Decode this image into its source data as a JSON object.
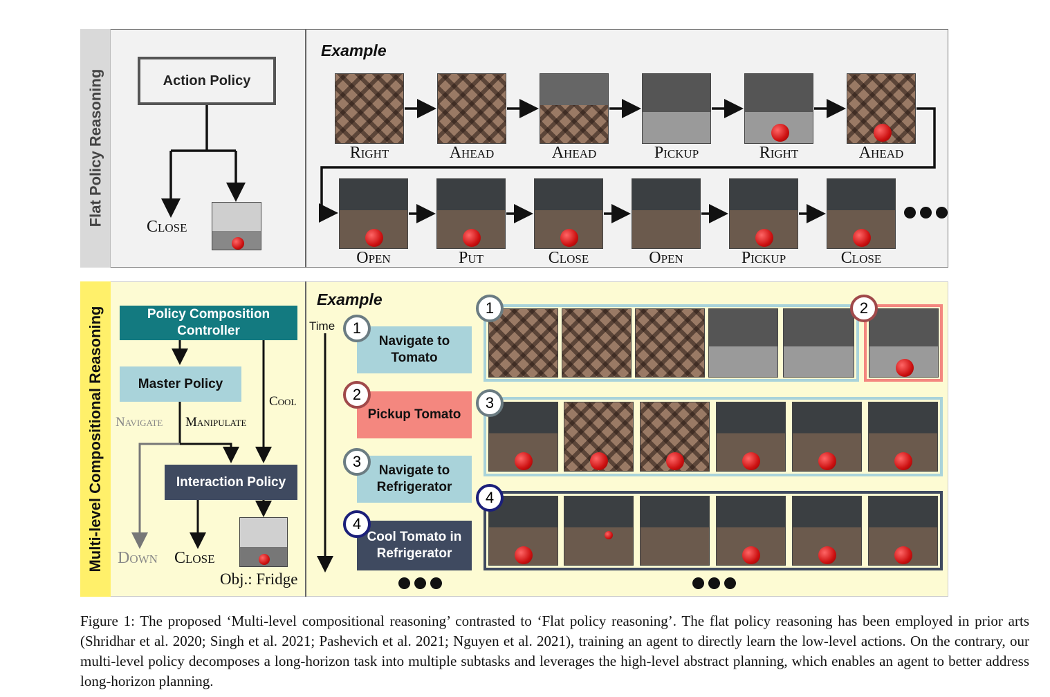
{
  "flat": {
    "side_label": "Flat Policy Reasoning",
    "example_label": "Example",
    "policy_box": "Action Policy",
    "output_action": "Close",
    "row1_actions": [
      "Right",
      "Ahead",
      "Ahead",
      "Pickup",
      "Right",
      "Ahead"
    ],
    "row2_actions": [
      "Open",
      "Put",
      "Close",
      "Open",
      "Pickup",
      "Close"
    ]
  },
  "multi": {
    "side_label": "Multi-level Compositional Reasoning",
    "example_label": "Example",
    "controller_box": "Policy Composition Controller",
    "master_box": "Master Policy",
    "interaction_box": "Interaction Policy",
    "edge_navigate": "Navigate",
    "edge_manipulate": "Manipulate",
    "edge_cool": "Cool",
    "out_down": "Down",
    "out_close": "Close",
    "obj_label": "Obj.: Fridge",
    "time_label": "Time",
    "subtasks": [
      {
        "num": "1",
        "label": "Navigate to Tomato",
        "color": "#a9d3da"
      },
      {
        "num": "2",
        "label": "Pickup Tomato",
        "color": "#f4877f"
      },
      {
        "num": "3",
        "label": "Navigate to Refrigerator",
        "color": "#a9d3da"
      },
      {
        "num": "4",
        "label": "Cool Tomato in Refrigerator",
        "color": "#3f4a60"
      }
    ],
    "group_nums": [
      "1",
      "2",
      "3",
      "4"
    ]
  },
  "colors": {
    "teal": "#137a80",
    "light_blue": "#a9d3da",
    "salmon": "#f4877f",
    "navy": "#3f4a60",
    "yellow": "#fff06a"
  },
  "caption": "Figure 1: The proposed ‘Multi-level compositional reasoning’ contrasted to ‘Flat policy reasoning’. The flat policy reasoning has been employed in prior arts (Shridhar et al. 2020; Singh et al. 2021; Pashevich et al. 2021; Nguyen et al. 2021), training an agent to directly learn the low-level actions. On the contrary, our multi-level policy decomposes a long-horizon task into multiple subtasks and leverages the high-level abstract planning, which enables an agent to better address long-horizon planning."
}
